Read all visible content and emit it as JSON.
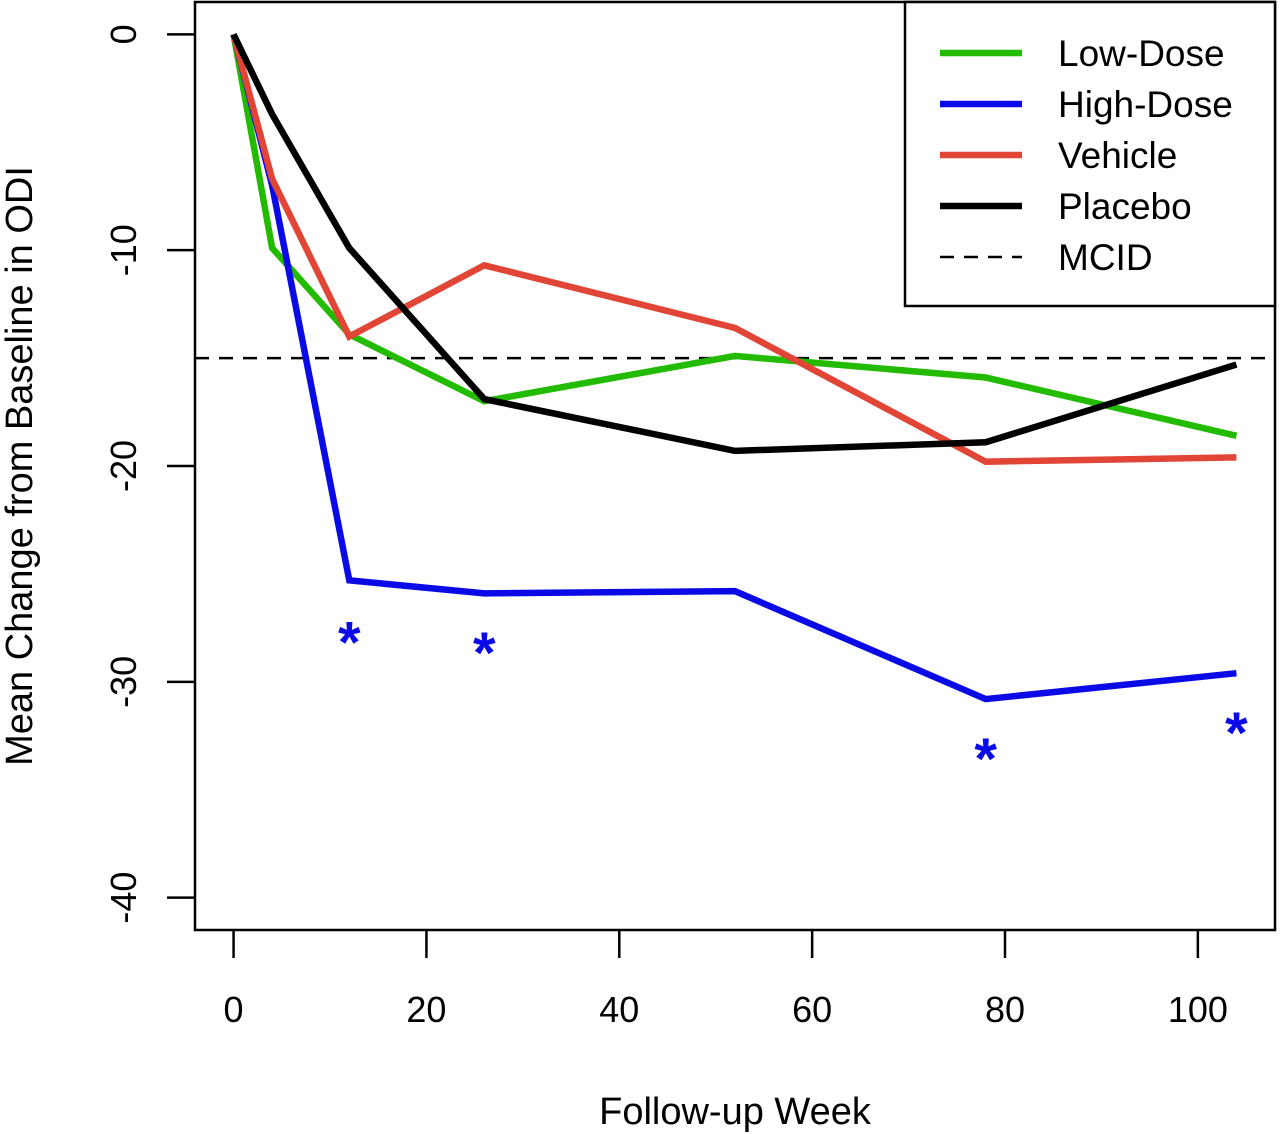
{
  "chart_data": {
    "type": "line",
    "title": "",
    "xlabel": "Follow-up Week",
    "ylabel": "Mean Change from Baseline in ODI",
    "xlim": [
      -4,
      108
    ],
    "ylim": [
      -41.5,
      1.5
    ],
    "x_ticks": [
      0,
      20,
      40,
      60,
      80,
      100
    ],
    "y_ticks": [
      0,
      -10,
      -20,
      -30,
      -40
    ],
    "grid": false,
    "legend_position": "top-right",
    "series": [
      {
        "name": "Low-Dose",
        "color": "#22bb00",
        "x": [
          0,
          4,
          12,
          26,
          52,
          78,
          104
        ],
        "y": [
          0,
          -9.9,
          -13.9,
          -17,
          -14.9,
          -15.9,
          -18.6
        ]
      },
      {
        "name": "High-Dose",
        "color": "#0a0ae6",
        "x": [
          0,
          4,
          12,
          26,
          52,
          78,
          104
        ],
        "y": [
          0,
          -7,
          -25.3,
          -25.9,
          -25.8,
          -30.8,
          -29.6
        ]
      },
      {
        "name": "Vehicle",
        "color": "#e04535",
        "x": [
          0,
          4,
          12,
          26,
          52,
          78,
          104
        ],
        "y": [
          0,
          -6.7,
          -14,
          -10.7,
          -13.6,
          -19.8,
          -19.6
        ]
      },
      {
        "name": "Placebo",
        "color": "#000000",
        "x": [
          0,
          4,
          12,
          26,
          52,
          78,
          104
        ],
        "y": [
          0,
          -3.7,
          -9.9,
          -16.9,
          -19.3,
          -18.9,
          -15.3
        ]
      }
    ],
    "reference_lines": [
      {
        "name": "MCID",
        "y": -15,
        "style": "dashed",
        "color": "#000000"
      }
    ],
    "annotations": [
      {
        "text": "*",
        "x": 12,
        "y": -27.8,
        "color": "#0a0ae6"
      },
      {
        "text": "*",
        "x": 26,
        "y": -28.3,
        "color": "#0a0ae6"
      },
      {
        "text": "*",
        "x": 78,
        "y": -33.2,
        "color": "#0a0ae6"
      },
      {
        "text": "*",
        "x": 104,
        "y": -32.0,
        "color": "#0a0ae6"
      }
    ]
  }
}
